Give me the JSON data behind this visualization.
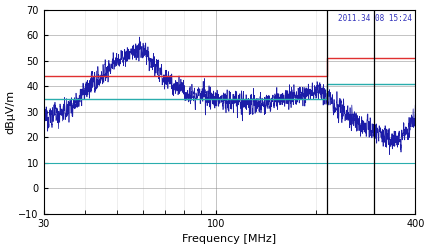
{
  "title": "",
  "ylabel": "dBμV/m",
  "xlabel": "Frequency [MHz]",
  "xmin": 30,
  "xmax": 400,
  "ymin": -10,
  "ymax": 70,
  "yticks": [
    -10,
    0,
    10,
    20,
    30,
    40,
    50,
    60,
    70
  ],
  "red_line": {
    "x": [
      30,
      216,
      216,
      400
    ],
    "y": [
      44,
      44,
      51,
      51
    ]
  },
  "teal_line_upper": {
    "x": [
      30,
      216,
      216,
      400
    ],
    "y": [
      35,
      35,
      41,
      41
    ]
  },
  "teal_line_lower": {
    "x": [
      30,
      400
    ],
    "y": [
      10,
      10
    ]
  },
  "vlines": [
    216,
    300
  ],
  "signal_color": "#1c1ca8",
  "red_color": "#e03030",
  "teal_color": "#2aadad",
  "bg_color": "#ffffff",
  "grid_major_color": "#888888",
  "grid_minor_color": "#cccccc",
  "timestamp": "2011.34 08 15:24",
  "timestamp_color": "#3333bb",
  "seed": 12345,
  "signal_envelope": {
    "freqs": [
      30,
      35,
      40,
      45,
      50,
      55,
      60,
      65,
      70,
      80,
      90,
      100,
      110,
      120,
      140,
      160,
      180,
      200,
      210,
      220,
      240,
      260,
      280,
      300,
      350,
      400
    ],
    "values": [
      28,
      30,
      38,
      44,
      50,
      53,
      54,
      48,
      43,
      38,
      36,
      35,
      34,
      33,
      33,
      35,
      37,
      38,
      37,
      35,
      30,
      27,
      25,
      22,
      18,
      27
    ]
  },
  "noise_scale": 3.5
}
